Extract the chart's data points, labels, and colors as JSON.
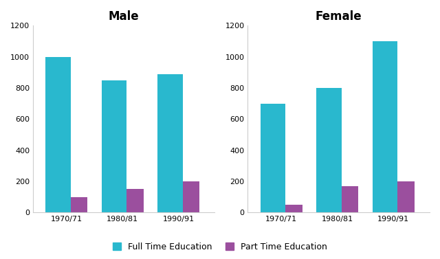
{
  "male_fulltime": [
    1000,
    850,
    890
  ],
  "male_parttime": [
    100,
    150,
    200
  ],
  "female_fulltime": [
    700,
    800,
    1100
  ],
  "female_parttime": [
    50,
    170,
    200
  ],
  "periods": [
    "1970/71",
    "1980/81",
    "1990/91"
  ],
  "male_title": "Male",
  "female_title": "Female",
  "ylim": [
    0,
    1200
  ],
  "yticks": [
    0,
    200,
    400,
    600,
    800,
    1000,
    1200
  ],
  "fulltime_color": "#29B8CE",
  "parttime_color": "#9B4F9E",
  "legend_fulltime": "Full Time Education",
  "legend_parttime": "Part Time Education",
  "background_color": "#ffffff",
  "ft_bar_width": 0.45,
  "pt_bar_width": 0.3,
  "title_fontsize": 12,
  "tick_fontsize": 8,
  "legend_fontsize": 9
}
